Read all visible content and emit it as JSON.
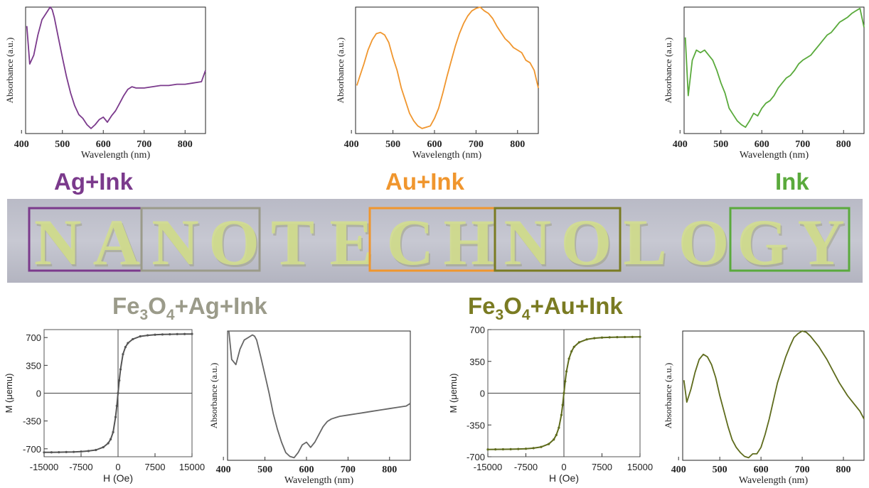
{
  "labels": {
    "ag_ink": "Ag+Ink",
    "au_ink": "Au+Ink",
    "ink": "Ink",
    "fe_ag_pre": "Fe",
    "fe_ag_sub3": "3",
    "fe_ag_o": "O",
    "fe_ag_sub4": "4",
    "fe_ag_post": "+Ag+Ink",
    "fe_au_pre": "Fe",
    "fe_au_sub3": "3",
    "fe_au_o": "O",
    "fe_au_sub4": "4",
    "fe_au_post": "+Au+Ink"
  },
  "banner": {
    "word": "NANOTECHNOLOGY",
    "letters": [
      "N",
      "A",
      "N",
      "O",
      "T",
      "E",
      "C",
      "H",
      "N",
      "O",
      "L",
      "O",
      "G",
      "Y"
    ],
    "boxes": [
      {
        "name": "ag-ink-box",
        "color": "#7b3a8c"
      },
      {
        "name": "fe3o4-ag-ink-box",
        "color": "#9b9b8a"
      },
      {
        "name": "au-ink-box",
        "color": "#f0962e"
      },
      {
        "name": "fe3o4-au-ink-box",
        "color": "#7a7b22"
      },
      {
        "name": "ink-box",
        "color": "#5aaa3c"
      }
    ]
  },
  "chart_data": [
    {
      "id": "ag-ink-absorbance",
      "type": "line",
      "color": "#7b3a8c",
      "xlabel": "Wavelength (nm)",
      "ylabel": "Absorbance (a.u.)",
      "xlim": [
        410,
        850
      ],
      "ylim": [
        0,
        1
      ],
      "xticks": [
        400,
        500,
        600,
        700,
        800
      ],
      "x": [
        413,
        420,
        430,
        440,
        450,
        460,
        470,
        475,
        480,
        490,
        500,
        510,
        520,
        530,
        540,
        550,
        560,
        570,
        580,
        590,
        600,
        610,
        620,
        630,
        640,
        650,
        660,
        670,
        680,
        700,
        720,
        740,
        760,
        780,
        800,
        820,
        840,
        850
      ],
      "y": [
        0.85,
        0.55,
        0.62,
        0.78,
        0.9,
        0.95,
        1.0,
        0.98,
        0.92,
        0.76,
        0.6,
        0.45,
        0.32,
        0.22,
        0.15,
        0.12,
        0.07,
        0.04,
        0.07,
        0.11,
        0.13,
        0.09,
        0.14,
        0.18,
        0.24,
        0.3,
        0.35,
        0.37,
        0.36,
        0.36,
        0.37,
        0.38,
        0.38,
        0.39,
        0.39,
        0.4,
        0.41,
        0.5
      ]
    },
    {
      "id": "au-ink-absorbance",
      "type": "line",
      "color": "#f0962e",
      "xlabel": "Wavelength (nm)",
      "ylabel": "Absorbance (a.u.)",
      "xlim": [
        410,
        850
      ],
      "ylim": [
        0,
        1
      ],
      "xticks": [
        400,
        500,
        600,
        700,
        800
      ],
      "x": [
        413,
        420,
        430,
        440,
        450,
        460,
        470,
        480,
        490,
        500,
        510,
        520,
        530,
        540,
        550,
        560,
        570,
        580,
        590,
        600,
        610,
        620,
        630,
        640,
        650,
        660,
        670,
        680,
        690,
        700,
        710,
        720,
        730,
        740,
        750,
        760,
        770,
        780,
        790,
        800,
        810,
        820,
        830,
        840,
        850
      ],
      "y": [
        0.38,
        0.45,
        0.55,
        0.66,
        0.74,
        0.79,
        0.8,
        0.78,
        0.72,
        0.6,
        0.5,
        0.36,
        0.26,
        0.16,
        0.1,
        0.06,
        0.04,
        0.05,
        0.06,
        0.12,
        0.2,
        0.32,
        0.45,
        0.57,
        0.69,
        0.79,
        0.87,
        0.93,
        0.97,
        0.99,
        1.0,
        0.97,
        0.95,
        0.91,
        0.85,
        0.8,
        0.75,
        0.72,
        0.68,
        0.66,
        0.64,
        0.58,
        0.56,
        0.5,
        0.36
      ]
    },
    {
      "id": "ink-absorbance",
      "type": "line",
      "color": "#5aaa3c",
      "xlabel": "Wavelength (nm)",
      "ylabel": "Absorbance (a.u.)",
      "xlim": [
        410,
        850
      ],
      "ylim": [
        0,
        1
      ],
      "xticks": [
        400,
        500,
        600,
        700,
        800
      ],
      "x": [
        413,
        420,
        430,
        440,
        450,
        460,
        470,
        480,
        490,
        500,
        510,
        520,
        530,
        540,
        550,
        560,
        570,
        580,
        590,
        600,
        610,
        620,
        630,
        640,
        650,
        660,
        670,
        680,
        690,
        700,
        710,
        720,
        730,
        740,
        750,
        760,
        770,
        780,
        790,
        800,
        810,
        820,
        830,
        840,
        850
      ],
      "y": [
        0.76,
        0.3,
        0.58,
        0.66,
        0.64,
        0.66,
        0.62,
        0.58,
        0.5,
        0.4,
        0.32,
        0.2,
        0.15,
        0.1,
        0.07,
        0.05,
        0.1,
        0.16,
        0.14,
        0.2,
        0.24,
        0.26,
        0.3,
        0.36,
        0.4,
        0.44,
        0.46,
        0.5,
        0.55,
        0.58,
        0.6,
        0.62,
        0.66,
        0.7,
        0.74,
        0.78,
        0.8,
        0.84,
        0.88,
        0.9,
        0.92,
        0.95,
        0.97,
        0.99,
        0.84
      ]
    },
    {
      "id": "fe3o4-ag-ink-magnetization",
      "type": "line",
      "color": "#555555",
      "xlabel": "H (Oe)",
      "ylabel": "M (μemu)",
      "xlim": [
        -15000,
        15000
      ],
      "ylim": [
        -800,
        800
      ],
      "xticks": [
        -15000,
        -7500,
        0,
        7500,
        15000
      ],
      "yticks": [
        -700,
        -350,
        0,
        350,
        700
      ],
      "x": [
        -15000,
        -13500,
        -12000,
        -10500,
        -9000,
        -7500,
        -6000,
        -4500,
        -3000,
        -2000,
        -1500,
        -1000,
        -500,
        -250,
        0,
        250,
        500,
        1000,
        1500,
        2000,
        3000,
        4500,
        6000,
        7500,
        9000,
        10500,
        12000,
        13500,
        15000
      ],
      "y": [
        -745,
        -744,
        -743,
        -741,
        -739,
        -735,
        -728,
        -715,
        -680,
        -630,
        -580,
        -490,
        -300,
        -160,
        0,
        160,
        300,
        490,
        580,
        630,
        680,
        715,
        728,
        735,
        739,
        741,
        743,
        744,
        745
      ]
    },
    {
      "id": "fe3o4-ag-ink-absorbance",
      "type": "line",
      "color": "#666666",
      "xlabel": "Wavelength (nm)",
      "ylabel": "Absorbance (a.u.)",
      "xlim": [
        410,
        850
      ],
      "ylim": [
        0,
        1
      ],
      "xticks": [
        400,
        500,
        600,
        700,
        800
      ],
      "x": [
        413,
        420,
        430,
        440,
        450,
        460,
        470,
        475,
        480,
        490,
        500,
        510,
        520,
        530,
        540,
        550,
        560,
        570,
        580,
        590,
        600,
        610,
        620,
        630,
        640,
        650,
        660,
        670,
        680,
        700,
        720,
        740,
        760,
        780,
        800,
        820,
        840,
        850
      ],
      "y": [
        1.0,
        0.78,
        0.74,
        0.86,
        0.93,
        0.95,
        0.97,
        0.96,
        0.93,
        0.8,
        0.66,
        0.52,
        0.36,
        0.24,
        0.14,
        0.06,
        0.03,
        0.02,
        0.06,
        0.12,
        0.14,
        0.1,
        0.14,
        0.2,
        0.26,
        0.3,
        0.32,
        0.33,
        0.34,
        0.35,
        0.36,
        0.37,
        0.38,
        0.39,
        0.4,
        0.41,
        0.42,
        0.44
      ]
    },
    {
      "id": "fe3o4-au-ink-magnetization",
      "type": "line",
      "color": "#5e6b1c",
      "xlabel": "H (Oe)",
      "ylabel": "M (μemu)",
      "xlim": [
        -15000,
        15000
      ],
      "ylim": [
        -700,
        700
      ],
      "xticks": [
        -15000,
        -7500,
        0,
        7500,
        15000
      ],
      "yticks": [
        -700,
        -350,
        0,
        350,
        700
      ],
      "x": [
        -15000,
        -13500,
        -12000,
        -10500,
        -9000,
        -7500,
        -6000,
        -4500,
        -3000,
        -2000,
        -1500,
        -1000,
        -500,
        -250,
        0,
        250,
        500,
        1000,
        1500,
        2000,
        3000,
        4500,
        6000,
        7500,
        9000,
        10500,
        12000,
        13500,
        15000
      ],
      "y": [
        -620,
        -619,
        -618,
        -617,
        -615,
        -612,
        -605,
        -592,
        -560,
        -510,
        -460,
        -380,
        -240,
        -130,
        0,
        130,
        240,
        380,
        460,
        510,
        560,
        592,
        605,
        612,
        615,
        617,
        618,
        619,
        620
      ]
    },
    {
      "id": "fe3o4-au-ink-absorbance",
      "type": "line",
      "color": "#5e6b1c",
      "xlabel": "Wavelength (nm)",
      "ylabel": "Absorbance (a.u.)",
      "xlim": [
        410,
        850
      ],
      "ylim": [
        0,
        1
      ],
      "xticks": [
        400,
        500,
        600,
        700,
        800
      ],
      "x": [
        413,
        420,
        430,
        440,
        450,
        460,
        470,
        480,
        490,
        500,
        510,
        520,
        530,
        540,
        550,
        560,
        570,
        580,
        590,
        600,
        610,
        620,
        630,
        640,
        650,
        660,
        670,
        680,
        690,
        700,
        710,
        720,
        730,
        740,
        750,
        760,
        770,
        780,
        790,
        800,
        810,
        820,
        830,
        840,
        850
      ],
      "y": [
        0.62,
        0.45,
        0.55,
        0.68,
        0.78,
        0.82,
        0.8,
        0.74,
        0.64,
        0.5,
        0.38,
        0.26,
        0.16,
        0.1,
        0.06,
        0.03,
        0.02,
        0.05,
        0.05,
        0.1,
        0.2,
        0.32,
        0.46,
        0.6,
        0.7,
        0.8,
        0.88,
        0.95,
        0.98,
        1.0,
        0.99,
        0.96,
        0.92,
        0.88,
        0.83,
        0.78,
        0.72,
        0.66,
        0.6,
        0.55,
        0.5,
        0.46,
        0.42,
        0.38,
        0.32
      ]
    }
  ]
}
